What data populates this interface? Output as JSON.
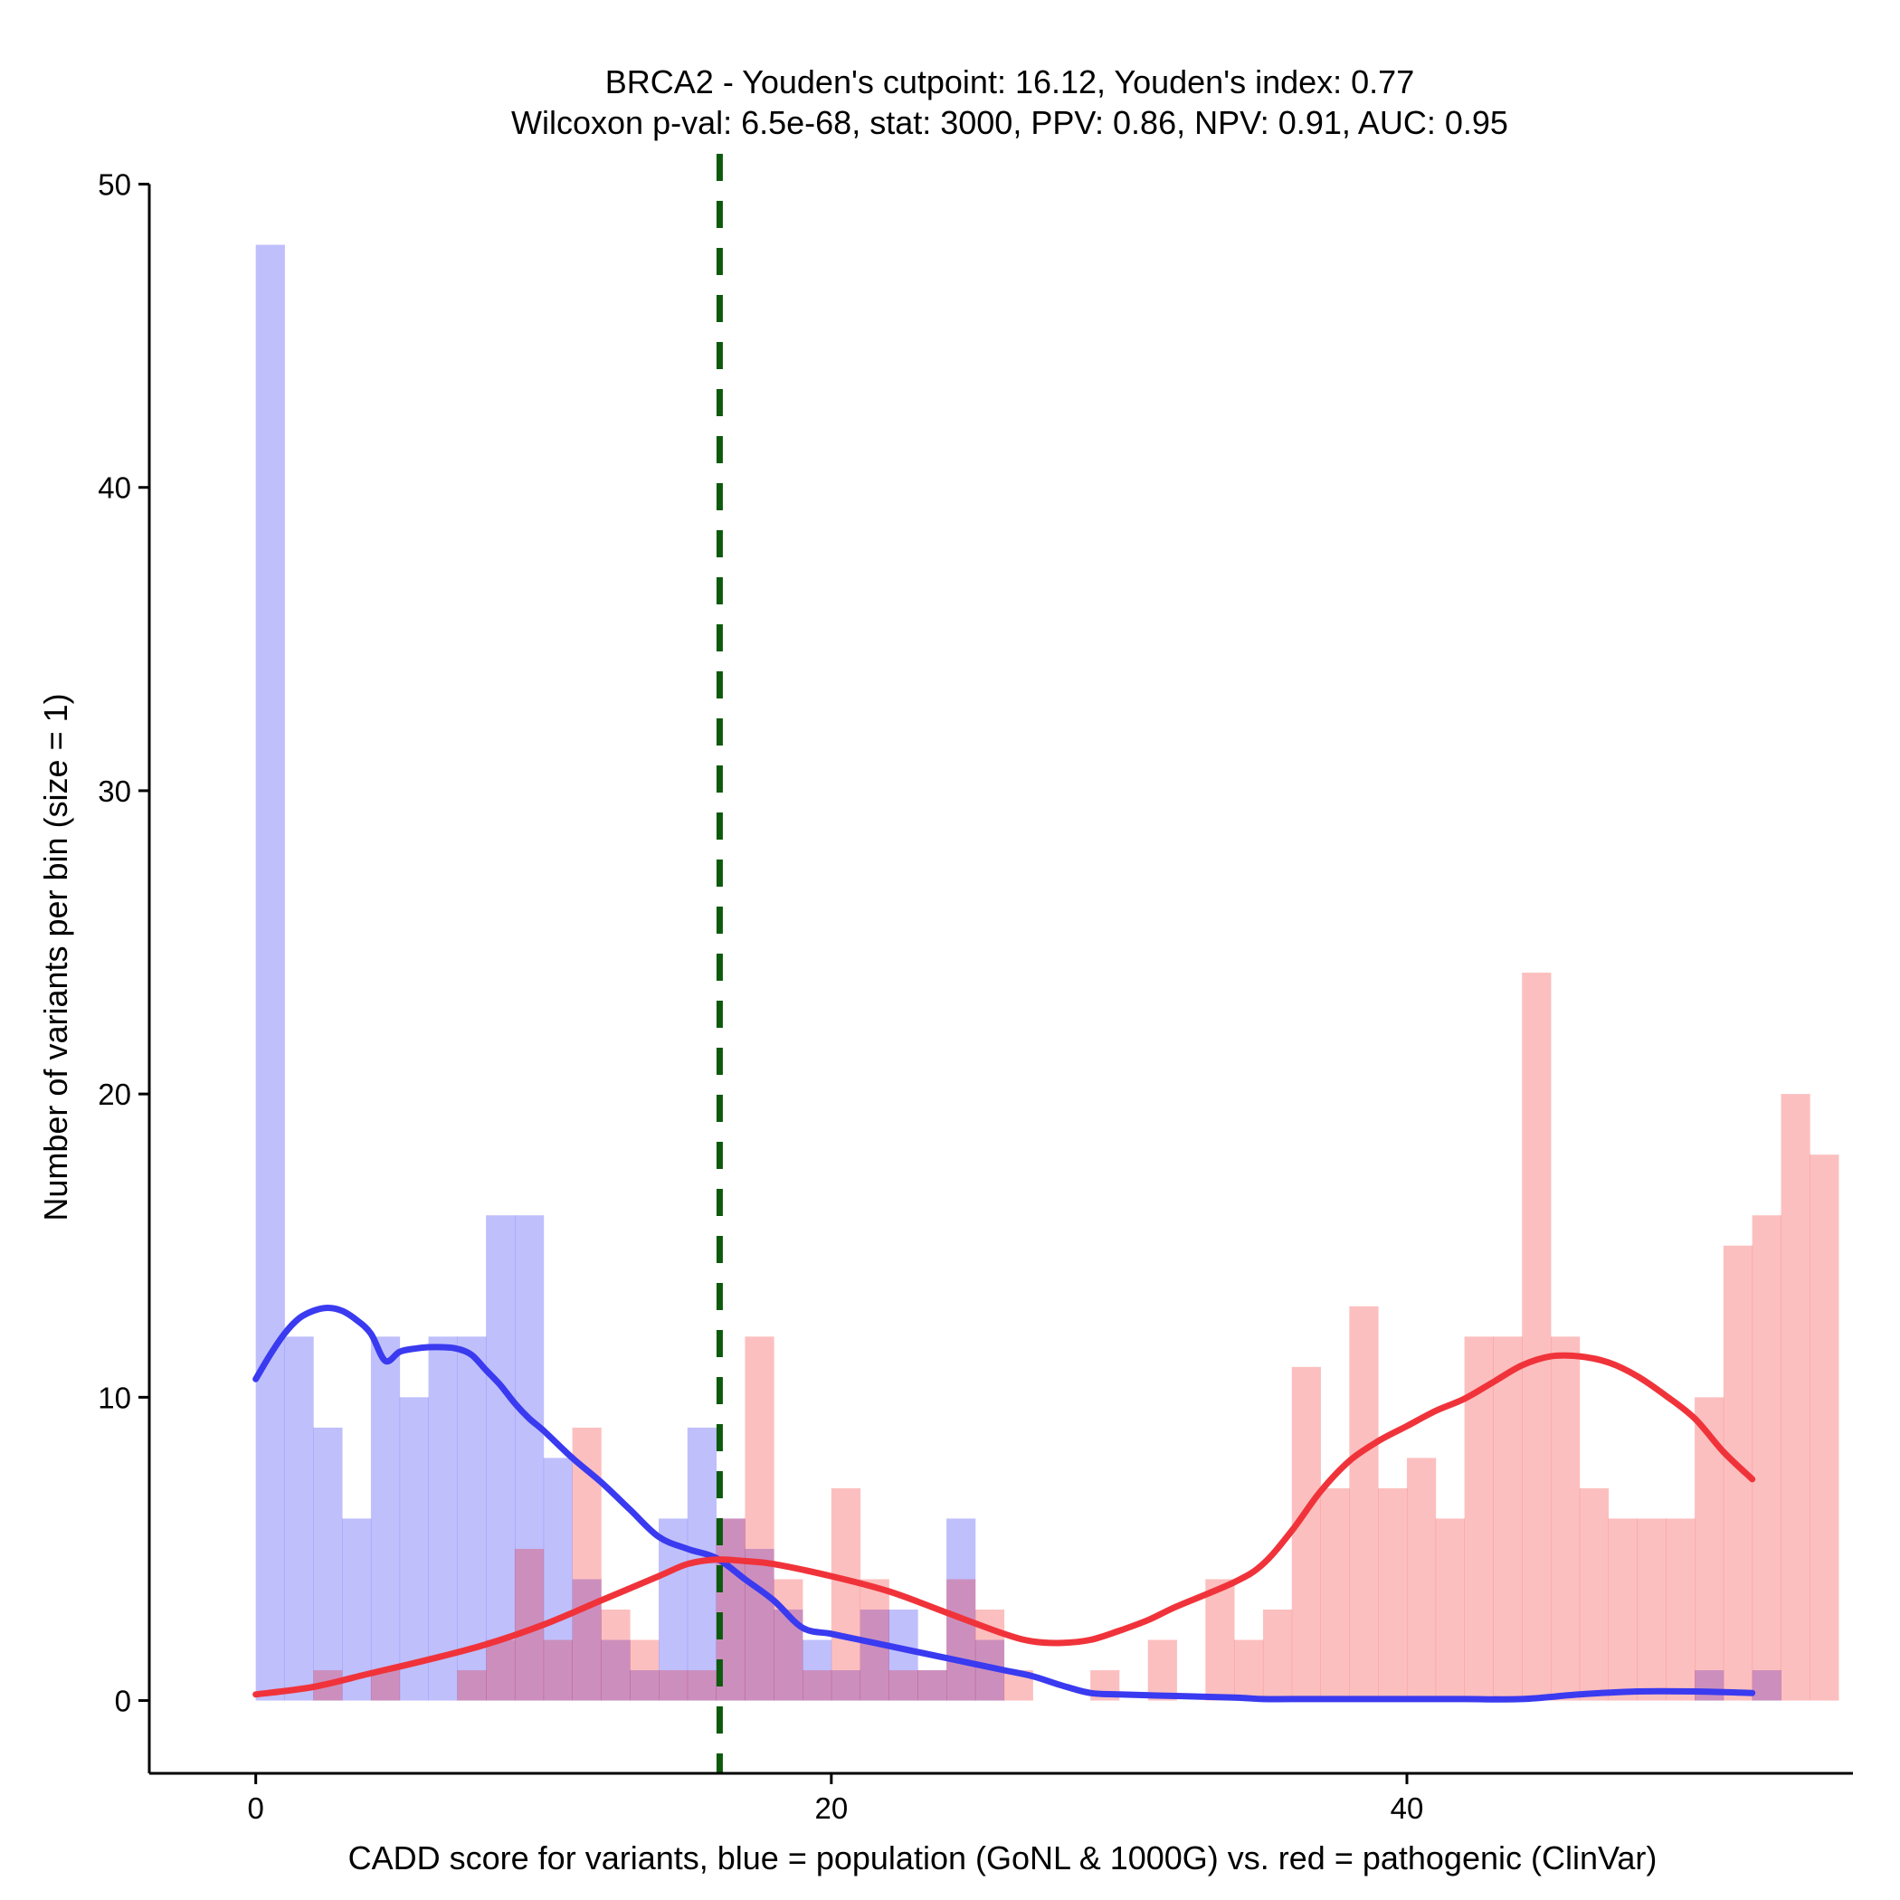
{
  "chart_data": {
    "type": "histogram",
    "title": "BRCA2 - Youden's cutpoint: 16.12, Youden's index: 0.77",
    "subtitle": "Wilcoxon p-val: 6.5e-68, stat: 3000, PPV: 0.86, NPV: 0.91, AUC: 0.95",
    "xlabel": "CADD score for variants, blue = population (GoNL & 1000G) vs. red = pathogenic (ClinVar)",
    "ylabel": "Number of variants per bin (size = 1)",
    "xlim": [
      -3.7,
      55.5
    ],
    "ylim": [
      -2.4,
      51
    ],
    "xticks": [
      0,
      20,
      40
    ],
    "yticks": [
      0,
      10,
      20,
      30,
      40,
      50
    ],
    "bin_width": 1,
    "bin_start": 0,
    "cutpoint": 16.12,
    "colors": {
      "population": "#0000f5",
      "pathogenic": "#f50000",
      "population_line": "#3a3af0",
      "pathogenic_line": "#f0333a",
      "cutpoint_line": "#0c5a0c"
    },
    "series": [
      {
        "name": "population (GoNL & 1000G)",
        "color": "blue",
        "values": [
          48,
          12,
          9,
          6,
          12,
          10,
          12,
          12,
          16,
          16,
          8,
          4,
          2,
          1,
          6,
          9,
          6,
          5,
          3,
          2,
          1,
          3,
          3,
          1,
          6,
          2,
          0,
          0,
          0,
          0,
          0,
          0,
          0,
          0,
          0,
          0,
          0,
          0,
          0,
          0,
          0,
          0,
          0,
          0,
          0,
          0,
          0,
          0,
          0,
          0,
          1,
          0,
          1,
          0
        ]
      },
      {
        "name": "pathogenic (ClinVar)",
        "color": "red",
        "values": [
          0,
          0,
          1,
          0,
          1,
          0,
          0,
          1,
          2,
          5,
          2,
          9,
          3,
          2,
          1,
          1,
          6,
          12,
          4,
          1,
          7,
          4,
          1,
          1,
          4,
          3,
          1,
          0,
          0,
          1,
          0,
          2,
          0,
          4,
          2,
          3,
          11,
          7,
          13,
          7,
          8,
          6,
          12,
          12,
          24,
          12,
          7,
          6,
          6,
          6,
          10,
          15,
          16,
          20,
          18
        ]
      }
    ],
    "smooth_lines": [
      {
        "name": "population density",
        "x": [
          0,
          0.5,
          1,
          1.5,
          2,
          2.5,
          3,
          3.5,
          4,
          4.5,
          5,
          5.5,
          6,
          6.5,
          7,
          7.5,
          8,
          8.5,
          9,
          9.5,
          10,
          11,
          12,
          13,
          14,
          15,
          16,
          17,
          18,
          19,
          20,
          21,
          22,
          23,
          24,
          25,
          26,
          27,
          28,
          29,
          30,
          32,
          34,
          35,
          36,
          38,
          40,
          42,
          44,
          46,
          48,
          50,
          52
        ],
        "y": [
          10.6,
          11.4,
          12.1,
          12.6,
          12.85,
          12.95,
          12.85,
          12.55,
          12.1,
          11.2,
          11.5,
          11.6,
          11.65,
          11.65,
          11.6,
          11.4,
          10.9,
          10.4,
          9.8,
          9.3,
          8.9,
          8.0,
          7.2,
          6.3,
          5.4,
          5.0,
          4.7,
          4.0,
          3.3,
          2.4,
          2.2,
          2.0,
          1.8,
          1.6,
          1.4,
          1.2,
          1.0,
          0.8,
          0.5,
          0.25,
          0.2,
          0.15,
          0.1,
          0.05,
          0.05,
          0.05,
          0.05,
          0.05,
          0.05,
          0.2,
          0.3,
          0.3,
          0.25
        ]
      },
      {
        "name": "pathogenic density",
        "x": [
          0,
          2,
          4,
          6,
          8,
          10,
          12,
          14,
          15,
          16,
          17,
          18,
          20,
          22,
          24,
          26,
          27,
          28,
          29,
          30,
          31,
          32,
          34,
          35,
          36,
          37,
          38,
          39,
          40,
          41,
          42,
          43,
          44,
          45,
          46,
          47,
          48,
          49,
          50,
          51,
          52
        ],
        "y": [
          0.2,
          0.45,
          0.9,
          1.35,
          1.85,
          2.5,
          3.3,
          4.1,
          4.5,
          4.65,
          4.6,
          4.5,
          4.1,
          3.6,
          2.9,
          2.2,
          1.95,
          1.9,
          2.0,
          2.3,
          2.65,
          3.1,
          3.9,
          4.5,
          5.6,
          6.9,
          7.9,
          8.55,
          9.05,
          9.55,
          9.95,
          10.5,
          11.05,
          11.35,
          11.35,
          11.15,
          10.7,
          10.05,
          9.3,
          8.2,
          7.3
        ]
      }
    ]
  }
}
